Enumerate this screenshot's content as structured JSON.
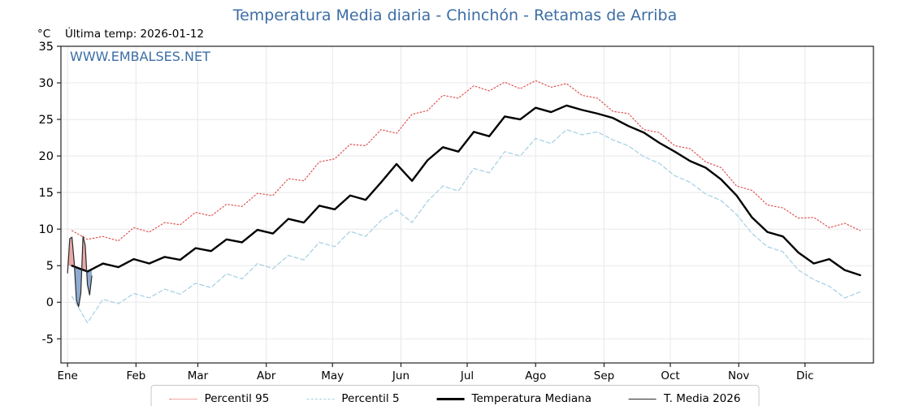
{
  "header": {
    "title": "Temperatura Media diaria - Chinchón - Retamas de Arriba",
    "unit": "°C",
    "last_temp": "Última temp: 2026-01-12",
    "watermark": "WWW.EMBALSES.NET"
  },
  "colors": {
    "title_blue": "#3c6ea5",
    "grid": "#e8e8e8",
    "axis": "#222222",
    "fill_above": "#e59a9a",
    "fill_below": "#7b9cc9"
  },
  "chart_data": {
    "type": "line",
    "title": "Temperatura Media diaria - Chinchón - Retamas de Arriba",
    "ylabel": "°C",
    "x_unit": "day_of_year",
    "xlim": [
      -2,
      366
    ],
    "ylim": [
      -8.3,
      35
    ],
    "yticks": [
      -5,
      0,
      5,
      10,
      15,
      20,
      25,
      30,
      35
    ],
    "month_ticks": [
      {
        "label": "Ene",
        "day": 1
      },
      {
        "label": "Feb",
        "day": 32
      },
      {
        "label": "Mar",
        "day": 60
      },
      {
        "label": "Abr",
        "day": 91
      },
      {
        "label": "May",
        "day": 121
      },
      {
        "label": "Jun",
        "day": 152
      },
      {
        "label": "Jul",
        "day": 182
      },
      {
        "label": "Ago",
        "day": 213
      },
      {
        "label": "Sep",
        "day": 244
      },
      {
        "label": "Oct",
        "day": 274
      },
      {
        "label": "Nov",
        "day": 305
      },
      {
        "label": "Dic",
        "day": 335
      }
    ],
    "grid": true,
    "legend_position": "bottom",
    "fill": {
      "above": "#e59a9a",
      "below": "#7b9cc9",
      "between": [
        "T. Media 2026",
        "Temperatura Mediana"
      ]
    },
    "series": [
      {
        "name": "Percentil 95",
        "color": "#e05252",
        "width": 1.2,
        "dash": "1.5 2.6",
        "legend_style": "dotted",
        "x": [
          3,
          10,
          17,
          24,
          31,
          38,
          45,
          52,
          59,
          66,
          73,
          80,
          87,
          94,
          101,
          108,
          115,
          122,
          129,
          136,
          143,
          150,
          157,
          164,
          171,
          178,
          185,
          192,
          199,
          206,
          213,
          220,
          227,
          234,
          241,
          248,
          255,
          262,
          269,
          276,
          283,
          290,
          297,
          304,
          311,
          318,
          325,
          332,
          339,
          346,
          353,
          360
        ],
        "y": [
          9.8,
          8.6,
          9.0,
          8.4,
          10.2,
          9.6,
          10.9,
          10.6,
          12.3,
          11.8,
          13.4,
          13.1,
          14.9,
          14.6,
          16.9,
          16.6,
          19.2,
          19.6,
          21.6,
          21.4,
          23.6,
          23.1,
          25.7,
          26.2,
          28.3,
          27.9,
          29.6,
          28.9,
          30.1,
          29.2,
          30.3,
          29.4,
          29.9,
          28.3,
          27.9,
          26.1,
          25.8,
          23.6,
          23.2,
          21.4,
          21.0,
          19.2,
          18.4,
          15.9,
          15.3,
          13.3,
          12.9,
          11.5,
          11.6,
          10.2,
          10.8,
          9.8
        ]
      },
      {
        "name": "Percentil 5",
        "color": "#a4cfe3",
        "width": 1.2,
        "dash": "5 3.2",
        "legend_style": "dashed",
        "x": [
          3,
          10,
          17,
          24,
          31,
          38,
          45,
          52,
          59,
          66,
          73,
          80,
          87,
          94,
          101,
          108,
          115,
          122,
          129,
          136,
          143,
          150,
          157,
          164,
          171,
          178,
          185,
          192,
          199,
          206,
          213,
          220,
          227,
          234,
          241,
          248,
          255,
          262,
          269,
          276,
          283,
          290,
          297,
          304,
          311,
          318,
          325,
          332,
          339,
          346,
          353,
          360
        ],
        "y": [
          0.8,
          -2.8,
          0.4,
          -0.2,
          1.2,
          0.6,
          1.8,
          1.1,
          2.6,
          2.0,
          3.9,
          3.2,
          5.3,
          4.6,
          6.4,
          5.8,
          8.2,
          7.6,
          9.7,
          9.0,
          11.2,
          12.6,
          10.9,
          13.8,
          15.9,
          15.2,
          18.3,
          17.7,
          20.6,
          20.0,
          22.4,
          21.7,
          23.6,
          22.9,
          23.3,
          22.2,
          21.4,
          19.9,
          19.0,
          17.3,
          16.4,
          14.8,
          13.9,
          12.0,
          9.4,
          7.6,
          6.9,
          4.4,
          3.1,
          2.2,
          0.6,
          1.4
        ]
      },
      {
        "name": "Temperatura Mediana",
        "color": "#000000",
        "width": 2.4,
        "dash": "",
        "legend_style": "solid",
        "x": [
          3,
          10,
          17,
          24,
          31,
          38,
          45,
          52,
          59,
          66,
          73,
          80,
          87,
          94,
          101,
          108,
          115,
          122,
          129,
          136,
          143,
          150,
          157,
          164,
          171,
          178,
          185,
          192,
          199,
          206,
          213,
          220,
          227,
          234,
          241,
          248,
          255,
          262,
          269,
          276,
          283,
          290,
          297,
          304,
          311,
          318,
          325,
          332,
          339,
          346,
          353,
          360
        ],
        "y": [
          5.0,
          4.2,
          5.3,
          4.8,
          5.9,
          5.3,
          6.2,
          5.8,
          7.4,
          7.0,
          8.6,
          8.2,
          9.9,
          9.4,
          11.4,
          10.9,
          13.2,
          12.7,
          14.6,
          14.0,
          16.4,
          18.9,
          16.6,
          19.4,
          21.2,
          20.6,
          23.3,
          22.7,
          25.4,
          25.0,
          26.6,
          26.0,
          26.9,
          26.3,
          25.8,
          25.2,
          24.1,
          23.2,
          21.8,
          20.6,
          19.3,
          18.4,
          16.8,
          14.6,
          11.6,
          9.6,
          9.0,
          6.8,
          5.3,
          5.9,
          4.4,
          3.7
        ]
      },
      {
        "name": "T. Media 2026",
        "color": "#2b2b2b",
        "width": 1.2,
        "dash": "",
        "legend_style": "solid",
        "x": [
          1,
          2,
          3,
          4,
          5,
          6,
          7,
          8,
          9,
          10,
          11,
          12
        ],
        "y": [
          4.0,
          8.7,
          8.9,
          5.5,
          0.3,
          -0.6,
          1.2,
          9.0,
          7.8,
          2.4,
          1.0,
          3.6
        ]
      }
    ]
  }
}
